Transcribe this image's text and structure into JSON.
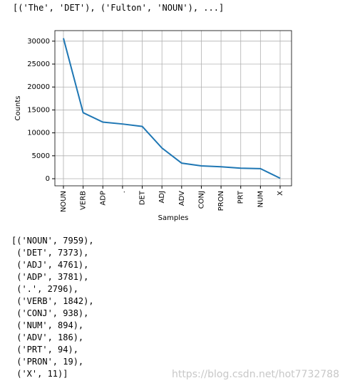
{
  "top_output": "[('The', 'DET'), ('Fulton', 'NOUN'), ...]",
  "chart_data": {
    "type": "line",
    "xlabel": "Samples",
    "ylabel": "Counts",
    "categories": [
      "NOUN",
      "VERB",
      "ADP",
      ".",
      "DET",
      "ADJ",
      "ADV",
      "CONJ",
      "PRON",
      "PRT",
      "NUM",
      "X"
    ],
    "series": [
      {
        "color": "#1f77b4",
        "values": [
          30640,
          14400,
          12350,
          11930,
          11400,
          6700,
          3400,
          2800,
          2600,
          2300,
          2200,
          100
        ]
      }
    ],
    "ylim": [
      -1550,
      32300
    ],
    "yticks": [
      0,
      5000,
      10000,
      15000,
      20000,
      25000,
      30000
    ],
    "grid": true
  },
  "list_output": [
    "[('NOUN', 7959),",
    " ('DET', 7373),",
    " ('ADJ', 4761),",
    " ('ADP', 3781),",
    " ('.', 2796),",
    " ('VERB', 1842),",
    " ('CONJ', 938),",
    " ('NUM', 894),",
    " ('ADV', 186),",
    " ('PRT', 94),",
    " ('PRON', 19),",
    " ('X', 11)]"
  ],
  "watermark": "https://blog.csdn.net/hot7732788"
}
